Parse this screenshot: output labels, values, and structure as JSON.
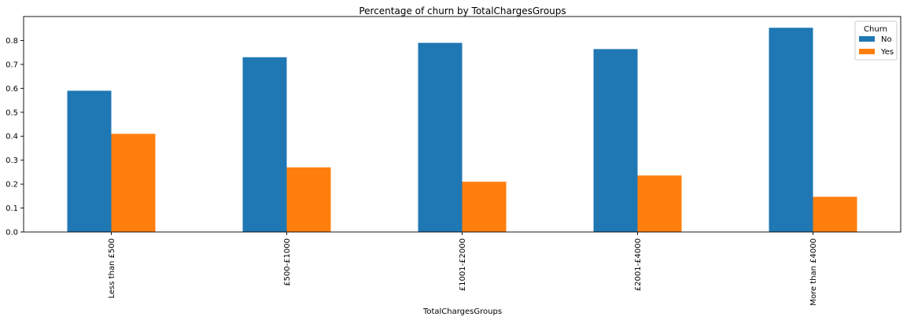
{
  "chart_data": {
    "type": "bar",
    "title": "Percentage of churn by TotalChargesGroups",
    "xlabel": "TotalChargesGroups",
    "ylabel": "",
    "categories": [
      "Less than £500",
      "£500-£1000",
      "£1001-£2000",
      "£2001-£4000",
      "More than £4000"
    ],
    "series": [
      {
        "name": "No",
        "values": [
          0.59,
          0.73,
          0.79,
          0.764,
          0.853
        ],
        "color": "#1f77b4"
      },
      {
        "name": "Yes",
        "values": [
          0.41,
          0.27,
          0.21,
          0.236,
          0.147
        ],
        "color": "#ff7f0e"
      }
    ],
    "ylim": [
      0,
      0.9
    ],
    "yticks": [
      0.0,
      0.1,
      0.2,
      0.3,
      0.4,
      0.5,
      0.6,
      0.7,
      0.8
    ],
    "ytick_labels": [
      "0.0",
      "0.1",
      "0.2",
      "0.3",
      "0.4",
      "0.5",
      "0.6",
      "0.7",
      "0.8"
    ],
    "grid": false,
    "legend": {
      "title": "Churn",
      "placement": "top-right",
      "entries": [
        "No",
        "Yes"
      ]
    }
  }
}
